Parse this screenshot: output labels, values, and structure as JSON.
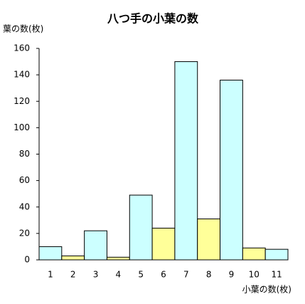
{
  "chart_data": {
    "type": "bar",
    "title": "八つ手の小葉の数",
    "y_label": "葉の数(枚)",
    "x_label": "小葉の数(枚)",
    "categories": [
      "1",
      "2",
      "3",
      "4",
      "5",
      "6",
      "7",
      "8",
      "9",
      "10",
      "11"
    ],
    "values": [
      10,
      3,
      22,
      2,
      49,
      24,
      150,
      31,
      136,
      9,
      8
    ],
    "colors": [
      "#ccffff",
      "#ffff99",
      "#ccffff",
      "#ffff99",
      "#ccffff",
      "#ffff99",
      "#ccffff",
      "#ffff99",
      "#ccffff",
      "#ffff99",
      "#ccffff"
    ],
    "ylim": [
      0,
      160
    ],
    "yticks": [
      0,
      20,
      40,
      60,
      80,
      100,
      120,
      140,
      160
    ],
    "grid": false
  }
}
